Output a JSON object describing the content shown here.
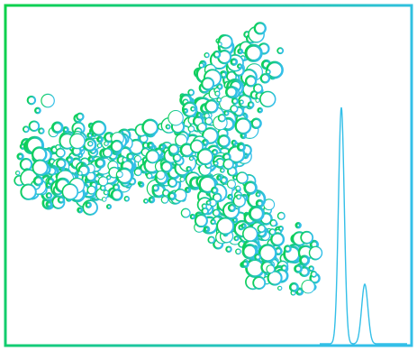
{
  "colors": {
    "green": "#0bd14a",
    "teal": "#1cc6a0",
    "blue": "#33bfe8",
    "background": "#ffffff"
  },
  "illustration": {
    "subject": "antibody-y-shape-bubbles",
    "arms": [
      "left-arm",
      "upper-right-arm",
      "lower-right-arm"
    ],
    "decoration": "chromatogram-two-peaks"
  }
}
